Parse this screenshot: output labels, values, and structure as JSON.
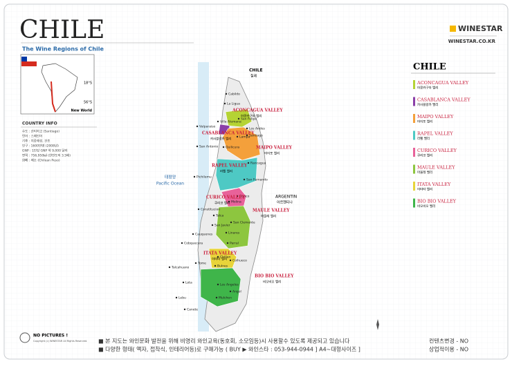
{
  "header": {
    "title": "CHILE",
    "subtitle": "The Wine Regions of Chile",
    "brand": "WINESTAR",
    "site": "WINESTAR.CO.KR"
  },
  "inset": {
    "lat_top": "18°S",
    "lat_bottom": "56°S",
    "label": "New World"
  },
  "country_info": {
    "title": "COUNTRY INFO",
    "lines": [
      "수도 : 산티아고 (Santiago)",
      "언어 : 스페인어",
      "기후 : 지중해성, 건조",
      "인구 : 1600만명 (2008년)",
      "GNP : 1인당 GNP 약 9,000 달러",
      "면적 : 756,950㎢ (한반도의 3.5배)",
      "화폐 : 페소 (Chilean Peso)"
    ]
  },
  "map": {
    "country": "CHILE",
    "country_kr": "칠레",
    "ocean": "Pacific Ocean",
    "ocean_kr": "태평양",
    "neighbor": "ARGENTIN",
    "neighbor_kr": "아르헨티나",
    "regions": [
      {
        "name": "ACONCAGUA VALLEY",
        "korean": "아콩카구아 밸리",
        "color": "#b5d334"
      },
      {
        "name": "CASABLANCA VALLEY",
        "korean": "카사블랑카 밸리",
        "color": "#8b3fa8"
      },
      {
        "name": "MAIPO VALLEY",
        "korean": "마이포 밸리",
        "color": "#f4a03b"
      },
      {
        "name": "RAPEL VALLEY",
        "korean": "라펠 밸리",
        "color": "#4ec9c4"
      },
      {
        "name": "CURICO VALLEY",
        "korean": "쿠리코 밸리",
        "color": "#e8629a"
      },
      {
        "name": "MAULE VALLEY",
        "korean": "마울레 밸리",
        "color": "#8dc63f"
      },
      {
        "name": "ITATA VALLEY",
        "korean": "이타타 밸리",
        "color": "#e8d43a"
      },
      {
        "name": "BIO BIO VALLEY",
        "korean": "비오비오 밸리",
        "color": "#3fb54a"
      }
    ],
    "cities": [
      "La Ligua",
      "Cabildo",
      "Villa Alemana",
      "San Felipe",
      "Valparaiso",
      "Los Andes",
      "Lampa",
      "Santiago",
      "San Antonio",
      "Quilicura",
      "Rancagua",
      "Pichilemu",
      "San Fernando",
      "Curico",
      "Molina",
      "Constitucion",
      "Talca",
      "San Clemente",
      "San Javier",
      "Linares",
      "Cauquenes",
      "Parral",
      "Cobquecura",
      "Chillan",
      "Coihueco",
      "Tome",
      "Talcahuano",
      "Bulnes",
      "Lota",
      "Los Angeles",
      "Lebu",
      "Angol",
      "Canete",
      "Mulchen"
    ]
  },
  "legend": {
    "title": "CHILE"
  },
  "footer": {
    "no_pictures": "NO PICTURES !",
    "copyright": "Copyright (c) WINESTAR All Rights Reserved.",
    "note1": "■ 본 지도는 와인문화 발전을 위해 비영리 와인교육(동호회, 소모임등)시 사용할수 있도록 제공되고 있습니다",
    "note2": "■ 다양한 형태( 액자, 접착식, 인테리어등)로 구매가능 ( BUY ▶ 와인스타 : 053-944-0944 ] A4~대형사이즈 ]",
    "flag1": "컨텐츠변경 - NO",
    "flag2": "상업적이용 - NO"
  }
}
